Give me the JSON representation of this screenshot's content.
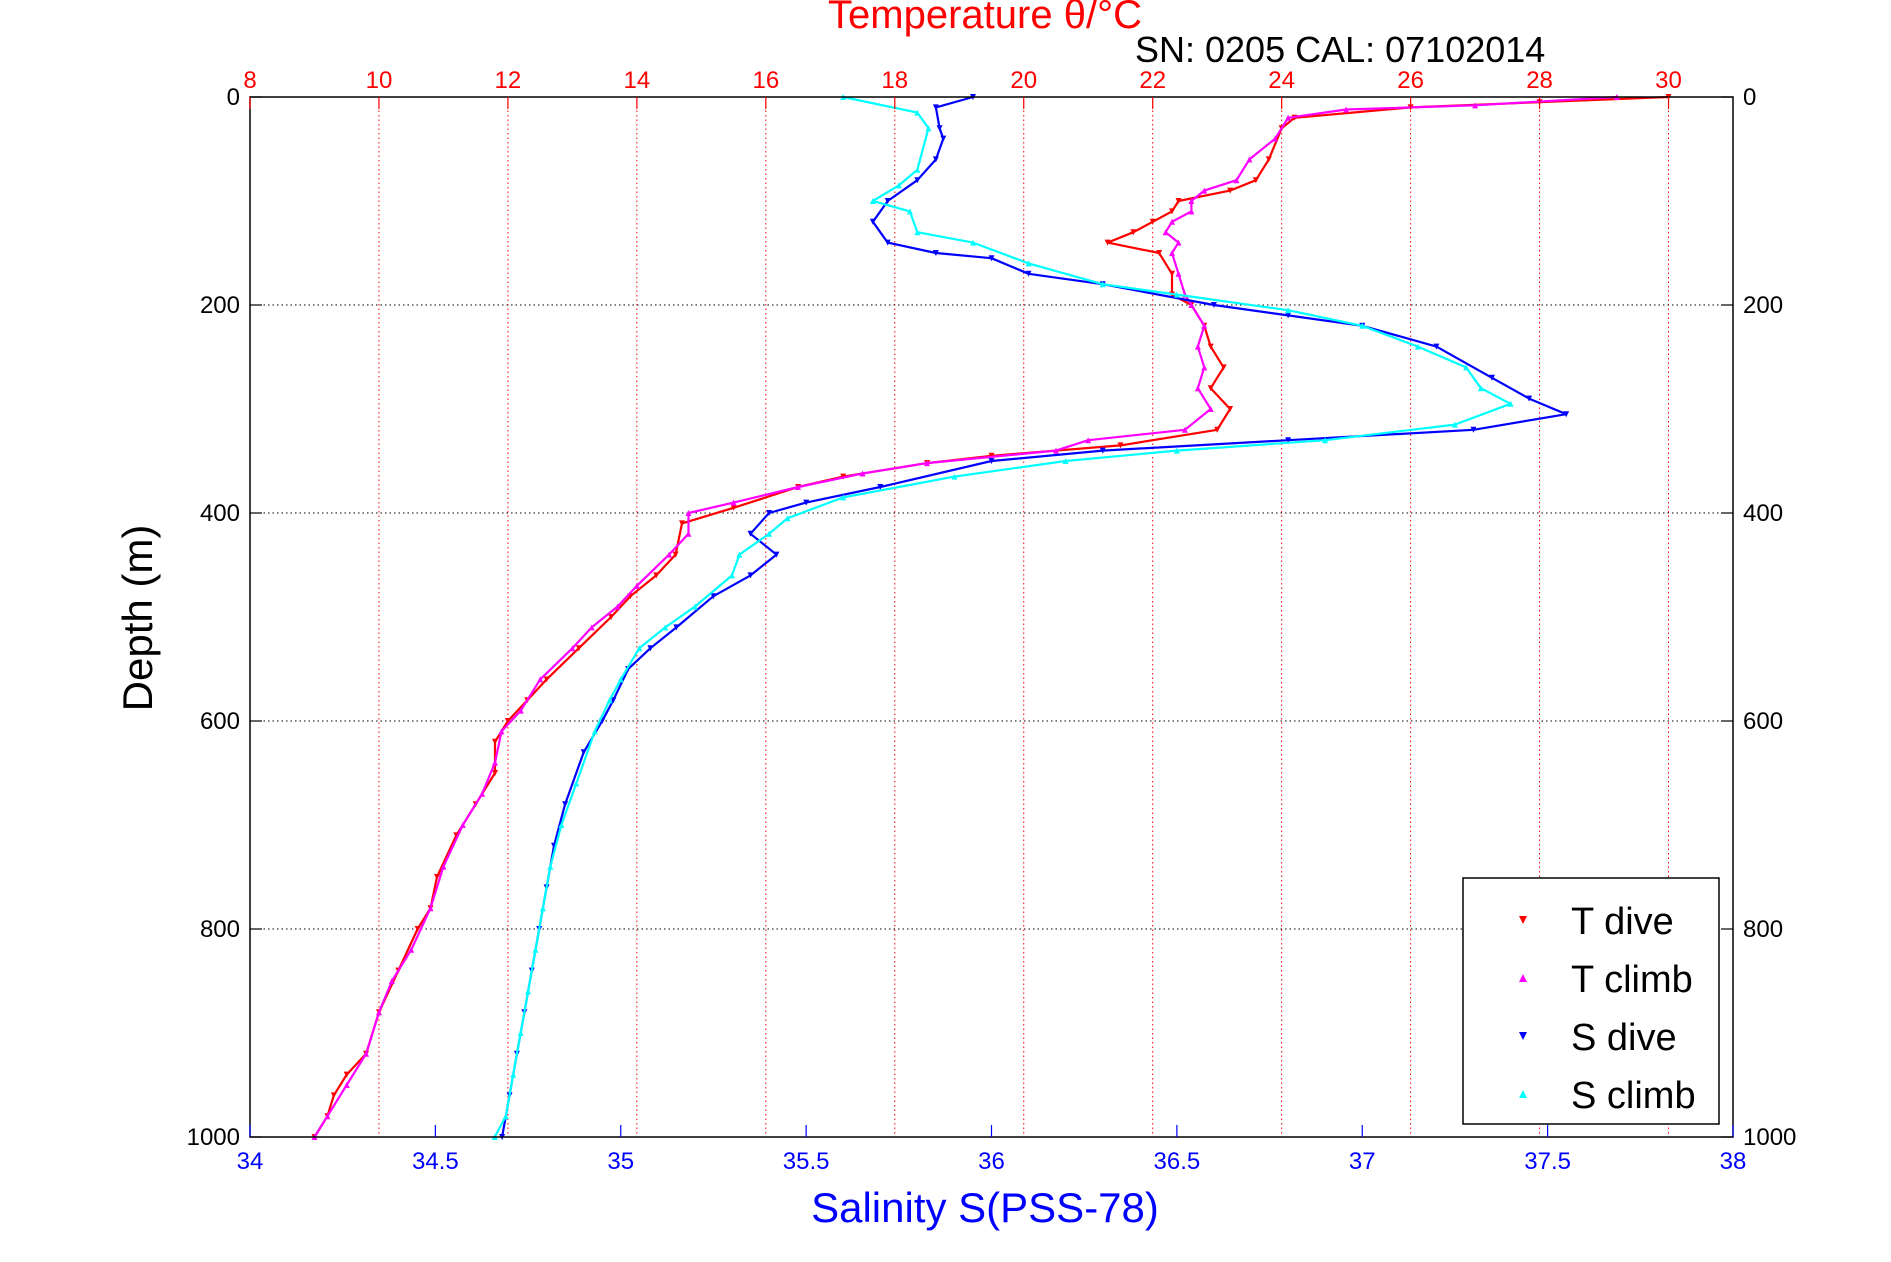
{
  "chart_data": {
    "type": "scatter",
    "title": "Temperature θ/°C",
    "annotation": "SN: 0205  CAL: 07102014",
    "xlabel_bottom": "Salinity S(PSS-78)",
    "ylabel": "Depth (m)",
    "x_bottom": {
      "lim": [
        34,
        38
      ],
      "ticks": [
        34,
        34.5,
        35,
        35.5,
        36,
        36.5,
        37,
        37.5,
        38
      ],
      "tick_labels": [
        "34",
        "34.5",
        "35",
        "35.5",
        "36",
        "36.5",
        "37",
        "37.5",
        "38"
      ]
    },
    "x_top": {
      "lim": [
        8,
        31
      ],
      "ticks": [
        8,
        10,
        12,
        14,
        16,
        18,
        20,
        22,
        24,
        26,
        28,
        30
      ],
      "tick_labels": [
        "8",
        "10",
        "12",
        "14",
        "16",
        "18",
        "20",
        "22",
        "24",
        "26",
        "28",
        "30"
      ]
    },
    "y": {
      "lim": [
        0,
        1000
      ],
      "reversed": true,
      "ticks": [
        0,
        200,
        400,
        600,
        800,
        1000
      ],
      "tick_labels": [
        "0",
        "200",
        "400",
        "600",
        "800",
        "1000"
      ]
    },
    "grid": true,
    "legend_position": "bottom-right",
    "series": [
      {
        "name": "T dive",
        "axis": "top",
        "marker": "triangle-down",
        "color": "#ff0000",
        "points": [
          [
            30.0,
            0
          ],
          [
            28.0,
            5
          ],
          [
            26.0,
            10
          ],
          [
            24.2,
            20
          ],
          [
            24.0,
            30
          ],
          [
            23.8,
            60
          ],
          [
            23.6,
            80
          ],
          [
            23.2,
            90
          ],
          [
            22.4,
            100
          ],
          [
            22.3,
            110
          ],
          [
            22.0,
            120
          ],
          [
            21.7,
            130
          ],
          [
            21.3,
            140
          ],
          [
            22.1,
            150
          ],
          [
            22.3,
            170
          ],
          [
            22.3,
            190
          ],
          [
            22.6,
            200
          ],
          [
            22.8,
            220
          ],
          [
            22.9,
            240
          ],
          [
            23.1,
            260
          ],
          [
            22.9,
            280
          ],
          [
            23.2,
            300
          ],
          [
            23.0,
            320
          ],
          [
            21.5,
            335
          ],
          [
            19.5,
            345
          ],
          [
            18.5,
            352
          ],
          [
            17.2,
            365
          ],
          [
            16.5,
            375
          ],
          [
            15.5,
            395
          ],
          [
            14.7,
            410
          ],
          [
            14.6,
            440
          ],
          [
            14.3,
            460
          ],
          [
            13.9,
            480
          ],
          [
            13.6,
            500
          ],
          [
            13.1,
            530
          ],
          [
            12.6,
            560
          ],
          [
            12.3,
            580
          ],
          [
            12.0,
            600
          ],
          [
            11.8,
            620
          ],
          [
            11.8,
            650
          ],
          [
            11.5,
            680
          ],
          [
            11.2,
            710
          ],
          [
            10.9,
            750
          ],
          [
            10.8,
            780
          ],
          [
            10.6,
            800
          ],
          [
            10.3,
            840
          ],
          [
            10.0,
            880
          ],
          [
            9.8,
            920
          ],
          [
            9.5,
            940
          ],
          [
            9.3,
            960
          ],
          [
            9.2,
            980
          ],
          [
            9.0,
            1000
          ]
        ]
      },
      {
        "name": "T climb",
        "axis": "top",
        "marker": "triangle-up",
        "color": "#ff00ff",
        "points": [
          [
            29.2,
            0
          ],
          [
            27.0,
            8
          ],
          [
            25.0,
            12
          ],
          [
            24.1,
            20
          ],
          [
            23.9,
            40
          ],
          [
            23.5,
            60
          ],
          [
            23.3,
            80
          ],
          [
            22.8,
            90
          ],
          [
            22.6,
            100
          ],
          [
            22.6,
            110
          ],
          [
            22.3,
            120
          ],
          [
            22.2,
            130
          ],
          [
            22.4,
            140
          ],
          [
            22.3,
            150
          ],
          [
            22.4,
            170
          ],
          [
            22.5,
            190
          ],
          [
            22.6,
            200
          ],
          [
            22.8,
            220
          ],
          [
            22.7,
            240
          ],
          [
            22.8,
            260
          ],
          [
            22.7,
            280
          ],
          [
            22.9,
            300
          ],
          [
            22.5,
            320
          ],
          [
            21.0,
            330
          ],
          [
            20.5,
            340
          ],
          [
            18.5,
            352
          ],
          [
            17.5,
            362
          ],
          [
            16.5,
            375
          ],
          [
            15.5,
            390
          ],
          [
            14.8,
            400
          ],
          [
            14.8,
            420
          ],
          [
            14.5,
            440
          ],
          [
            14.0,
            470
          ],
          [
            13.7,
            490
          ],
          [
            13.3,
            510
          ],
          [
            13.0,
            530
          ],
          [
            12.5,
            560
          ],
          [
            12.2,
            590
          ],
          [
            11.9,
            610
          ],
          [
            11.8,
            640
          ],
          [
            11.6,
            670
          ],
          [
            11.3,
            700
          ],
          [
            11.0,
            740
          ],
          [
            10.8,
            780
          ],
          [
            10.5,
            820
          ],
          [
            10.2,
            850
          ],
          [
            10.0,
            880
          ],
          [
            9.8,
            920
          ],
          [
            9.5,
            950
          ],
          [
            9.2,
            980
          ],
          [
            9.0,
            1000
          ]
        ]
      },
      {
        "name": "S dive",
        "axis": "bottom",
        "marker": "triangle-down",
        "color": "#0000ff",
        "points": [
          [
            35.95,
            0
          ],
          [
            35.85,
            10
          ],
          [
            35.86,
            30
          ],
          [
            35.87,
            40
          ],
          [
            35.85,
            60
          ],
          [
            35.8,
            80
          ],
          [
            35.72,
            100
          ],
          [
            35.68,
            120
          ],
          [
            35.72,
            140
          ],
          [
            35.85,
            150
          ],
          [
            36.0,
            155
          ],
          [
            36.1,
            170
          ],
          [
            36.3,
            180
          ],
          [
            36.6,
            200
          ],
          [
            36.8,
            210
          ],
          [
            37.0,
            220
          ],
          [
            37.2,
            240
          ],
          [
            37.35,
            270
          ],
          [
            37.45,
            290
          ],
          [
            37.55,
            305
          ],
          [
            37.3,
            320
          ],
          [
            36.8,
            330
          ],
          [
            36.3,
            340
          ],
          [
            36.0,
            350
          ],
          [
            35.7,
            375
          ],
          [
            35.5,
            390
          ],
          [
            35.4,
            400
          ],
          [
            35.35,
            420
          ],
          [
            35.42,
            440
          ],
          [
            35.35,
            460
          ],
          [
            35.25,
            480
          ],
          [
            35.15,
            510
          ],
          [
            35.08,
            530
          ],
          [
            35.02,
            550
          ],
          [
            34.98,
            580
          ],
          [
            34.95,
            600
          ],
          [
            34.9,
            630
          ],
          [
            34.85,
            680
          ],
          [
            34.82,
            720
          ],
          [
            34.8,
            760
          ],
          [
            34.78,
            800
          ],
          [
            34.76,
            840
          ],
          [
            34.74,
            880
          ],
          [
            34.72,
            920
          ],
          [
            34.7,
            960
          ],
          [
            34.68,
            1000
          ]
        ]
      },
      {
        "name": "S climb",
        "axis": "bottom",
        "marker": "triangle-up",
        "color": "#00ffff",
        "points": [
          [
            35.6,
            0
          ],
          [
            35.8,
            15
          ],
          [
            35.83,
            30
          ],
          [
            35.8,
            70
          ],
          [
            35.75,
            85
          ],
          [
            35.68,
            100
          ],
          [
            35.78,
            110
          ],
          [
            35.8,
            130
          ],
          [
            35.95,
            140
          ],
          [
            36.1,
            160
          ],
          [
            36.3,
            180
          ],
          [
            36.5,
            190
          ],
          [
            36.8,
            205
          ],
          [
            37.0,
            220
          ],
          [
            37.15,
            240
          ],
          [
            37.28,
            260
          ],
          [
            37.32,
            280
          ],
          [
            37.4,
            295
          ],
          [
            37.25,
            315
          ],
          [
            36.9,
            330
          ],
          [
            36.5,
            340
          ],
          [
            36.2,
            350
          ],
          [
            35.9,
            365
          ],
          [
            35.6,
            385
          ],
          [
            35.45,
            405
          ],
          [
            35.4,
            420
          ],
          [
            35.32,
            440
          ],
          [
            35.3,
            460
          ],
          [
            35.2,
            490
          ],
          [
            35.12,
            510
          ],
          [
            35.05,
            530
          ],
          [
            35.0,
            560
          ],
          [
            34.97,
            580
          ],
          [
            34.93,
            610
          ],
          [
            34.88,
            660
          ],
          [
            34.84,
            700
          ],
          [
            34.81,
            740
          ],
          [
            34.79,
            780
          ],
          [
            34.77,
            820
          ],
          [
            34.75,
            860
          ],
          [
            34.73,
            900
          ],
          [
            34.71,
            940
          ],
          [
            34.69,
            980
          ],
          [
            34.66,
            1000
          ]
        ]
      }
    ]
  }
}
